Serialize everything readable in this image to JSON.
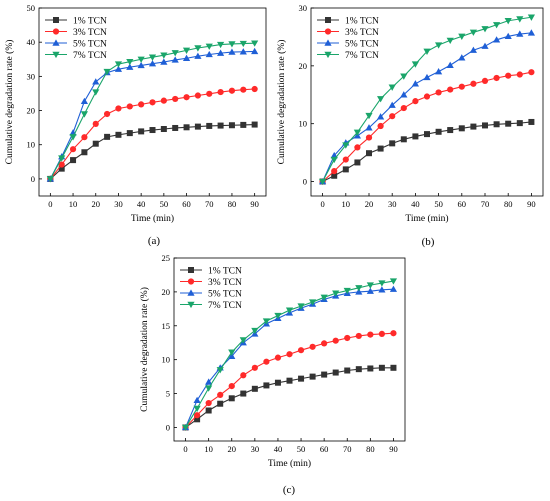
{
  "chart_data": [
    {
      "type": "line",
      "panel_label": "(a)",
      "xlabel": "Time (min)",
      "ylabel": "Cumulative degradation rate (%)",
      "xlim": [
        -5,
        95
      ],
      "ylim": [
        -5,
        50
      ],
      "xticks": [
        0,
        10,
        20,
        30,
        40,
        50,
        60,
        70,
        80,
        90
      ],
      "yticks": [
        0,
        10,
        20,
        30,
        40,
        50
      ],
      "legend_position": "top-left",
      "x": [
        0,
        5,
        10,
        15,
        20,
        25,
        30,
        35,
        40,
        45,
        50,
        55,
        60,
        65,
        70,
        75,
        80,
        85,
        90
      ],
      "series": [
        {
          "name": "1% TCN",
          "color": "#333333",
          "marker": "square",
          "values": [
            0,
            3.0,
            5.5,
            7.8,
            10.3,
            12.3,
            12.9,
            13.4,
            13.9,
            14.3,
            14.6,
            14.9,
            15.1,
            15.3,
            15.5,
            15.6,
            15.7,
            15.8,
            15.9
          ]
        },
        {
          "name": "3% TCN",
          "color": "#ff2a2a",
          "marker": "circle",
          "values": [
            0,
            4.2,
            8.7,
            12.2,
            16.1,
            19.0,
            20.6,
            21.2,
            21.8,
            22.4,
            22.9,
            23.4,
            23.9,
            24.4,
            24.9,
            25.4,
            25.8,
            26.1,
            26.3
          ]
        },
        {
          "name": "5% TCN",
          "color": "#1f5fd6",
          "marker": "triangle-up",
          "values": [
            0,
            6.5,
            13.5,
            22.7,
            28.4,
            31.1,
            32.1,
            32.7,
            33.2,
            33.7,
            34.2,
            34.8,
            35.3,
            35.9,
            36.4,
            36.8,
            37.1,
            37.2,
            37.3
          ]
        },
        {
          "name": "7% TCN",
          "color": "#1aa56a",
          "marker": "triangle-down",
          "values": [
            0,
            6.1,
            12.3,
            19.0,
            25.4,
            31.4,
            33.6,
            34.3,
            35.0,
            35.6,
            36.2,
            36.9,
            37.6,
            38.3,
            38.8,
            39.3,
            39.5,
            39.6,
            39.7
          ]
        }
      ]
    },
    {
      "type": "line",
      "panel_label": "(b)",
      "xlabel": "Time (min)",
      "ylabel": "Cumulative degradation rate (%)",
      "xlim": [
        -5,
        95
      ],
      "ylim": [
        -2.5,
        30
      ],
      "xticks": [
        0,
        10,
        20,
        30,
        40,
        50,
        60,
        70,
        80,
        90
      ],
      "yticks": [
        0,
        10,
        20,
        30
      ],
      "legend_position": "top-left",
      "x": [
        0,
        5,
        10,
        15,
        20,
        25,
        30,
        35,
        40,
        45,
        50,
        55,
        60,
        65,
        70,
        75,
        80,
        85,
        90
      ],
      "series": [
        {
          "name": "1% TCN",
          "color": "#333333",
          "marker": "square",
          "values": [
            0,
            1.0,
            2.1,
            3.3,
            4.9,
            5.7,
            6.6,
            7.3,
            7.8,
            8.2,
            8.6,
            8.9,
            9.2,
            9.5,
            9.7,
            9.9,
            10.0,
            10.1,
            10.3
          ]
        },
        {
          "name": "3% TCN",
          "color": "#ff2a2a",
          "marker": "circle",
          "values": [
            0,
            1.8,
            3.8,
            5.9,
            7.6,
            9.6,
            11.3,
            12.7,
            13.9,
            14.7,
            15.4,
            15.9,
            16.4,
            16.9,
            17.4,
            17.9,
            18.3,
            18.5,
            18.9
          ]
        },
        {
          "name": "5% TCN",
          "color": "#1f5fd6",
          "marker": "triangle-up",
          "values": [
            0,
            4.5,
            6.7,
            7.9,
            9.3,
            11.2,
            13.2,
            15.0,
            16.9,
            18.0,
            19.0,
            20.1,
            21.4,
            22.7,
            23.4,
            24.5,
            25.1,
            25.5,
            25.7
          ]
        },
        {
          "name": "7% TCN",
          "color": "#1aa56a",
          "marker": "triangle-down",
          "values": [
            0,
            3.8,
            6.3,
            8.5,
            11.4,
            14.3,
            16.3,
            18.2,
            20.3,
            22.5,
            23.6,
            24.4,
            25.1,
            25.8,
            26.4,
            27.1,
            27.8,
            28.1,
            28.4
          ]
        }
      ]
    },
    {
      "type": "line",
      "panel_label": "(c)",
      "xlabel": "Time (min)",
      "ylabel": "Cumulative degradation rate (%)",
      "xlim": [
        -5,
        95
      ],
      "ylim": [
        -2,
        25
      ],
      "xticks": [
        0,
        10,
        20,
        30,
        40,
        50,
        60,
        70,
        80,
        90
      ],
      "yticks": [
        0,
        5,
        10,
        15,
        20,
        25
      ],
      "legend_position": "top-left",
      "x": [
        0,
        5,
        10,
        15,
        20,
        25,
        30,
        35,
        40,
        45,
        50,
        55,
        60,
        65,
        70,
        75,
        80,
        85,
        90
      ],
      "series": [
        {
          "name": "1% TCN",
          "color": "#333333",
          "marker": "square",
          "values": [
            0,
            1.2,
            2.5,
            3.5,
            4.3,
            5.0,
            5.7,
            6.2,
            6.6,
            6.9,
            7.2,
            7.5,
            7.8,
            8.1,
            8.4,
            8.6,
            8.7,
            8.8,
            8.8
          ]
        },
        {
          "name": "3% TCN",
          "color": "#ff2a2a",
          "marker": "circle",
          "values": [
            0,
            1.8,
            3.6,
            4.8,
            6.1,
            7.7,
            8.8,
            9.7,
            10.3,
            10.8,
            11.4,
            11.9,
            12.4,
            12.8,
            13.2,
            13.5,
            13.7,
            13.8,
            13.9
          ]
        },
        {
          "name": "5% TCN",
          "color": "#1f5fd6",
          "marker": "triangle-up",
          "values": [
            0,
            4.0,
            6.7,
            8.8,
            10.5,
            12.5,
            13.8,
            15.3,
            16.1,
            16.9,
            17.6,
            18.2,
            18.9,
            19.4,
            19.8,
            20.0,
            20.1,
            20.3,
            20.4
          ]
        },
        {
          "name": "7% TCN",
          "color": "#1aa56a",
          "marker": "triangle-down",
          "values": [
            0,
            2.8,
            5.8,
            8.5,
            11.1,
            12.9,
            14.3,
            15.7,
            16.5,
            17.3,
            17.9,
            18.5,
            19.2,
            19.8,
            20.2,
            20.6,
            21.0,
            21.3,
            21.6
          ]
        }
      ]
    }
  ]
}
